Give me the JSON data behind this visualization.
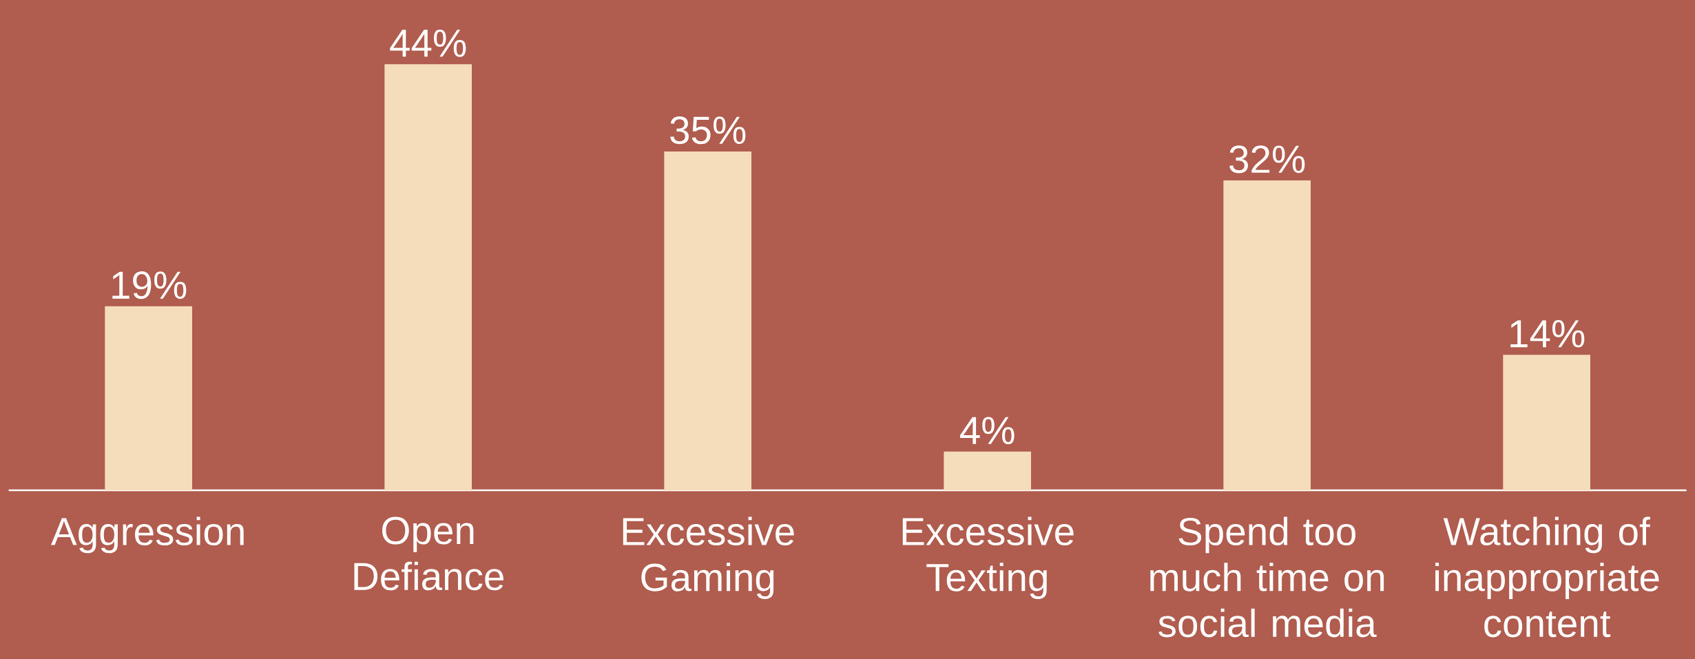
{
  "chart_data": {
    "type": "bar",
    "categories": [
      "Aggression",
      "Open Defiance",
      "Excessive Gaming",
      "Excessive Texting",
      "Spend too much time on social media",
      "Watching of inappropriate content"
    ],
    "values": [
      19,
      44,
      35,
      4,
      32,
      14
    ],
    "value_labels": [
      "19%",
      "44%",
      "35%",
      "4%",
      "32%",
      "14%"
    ],
    "color": "#f5dcbb"
  }
}
